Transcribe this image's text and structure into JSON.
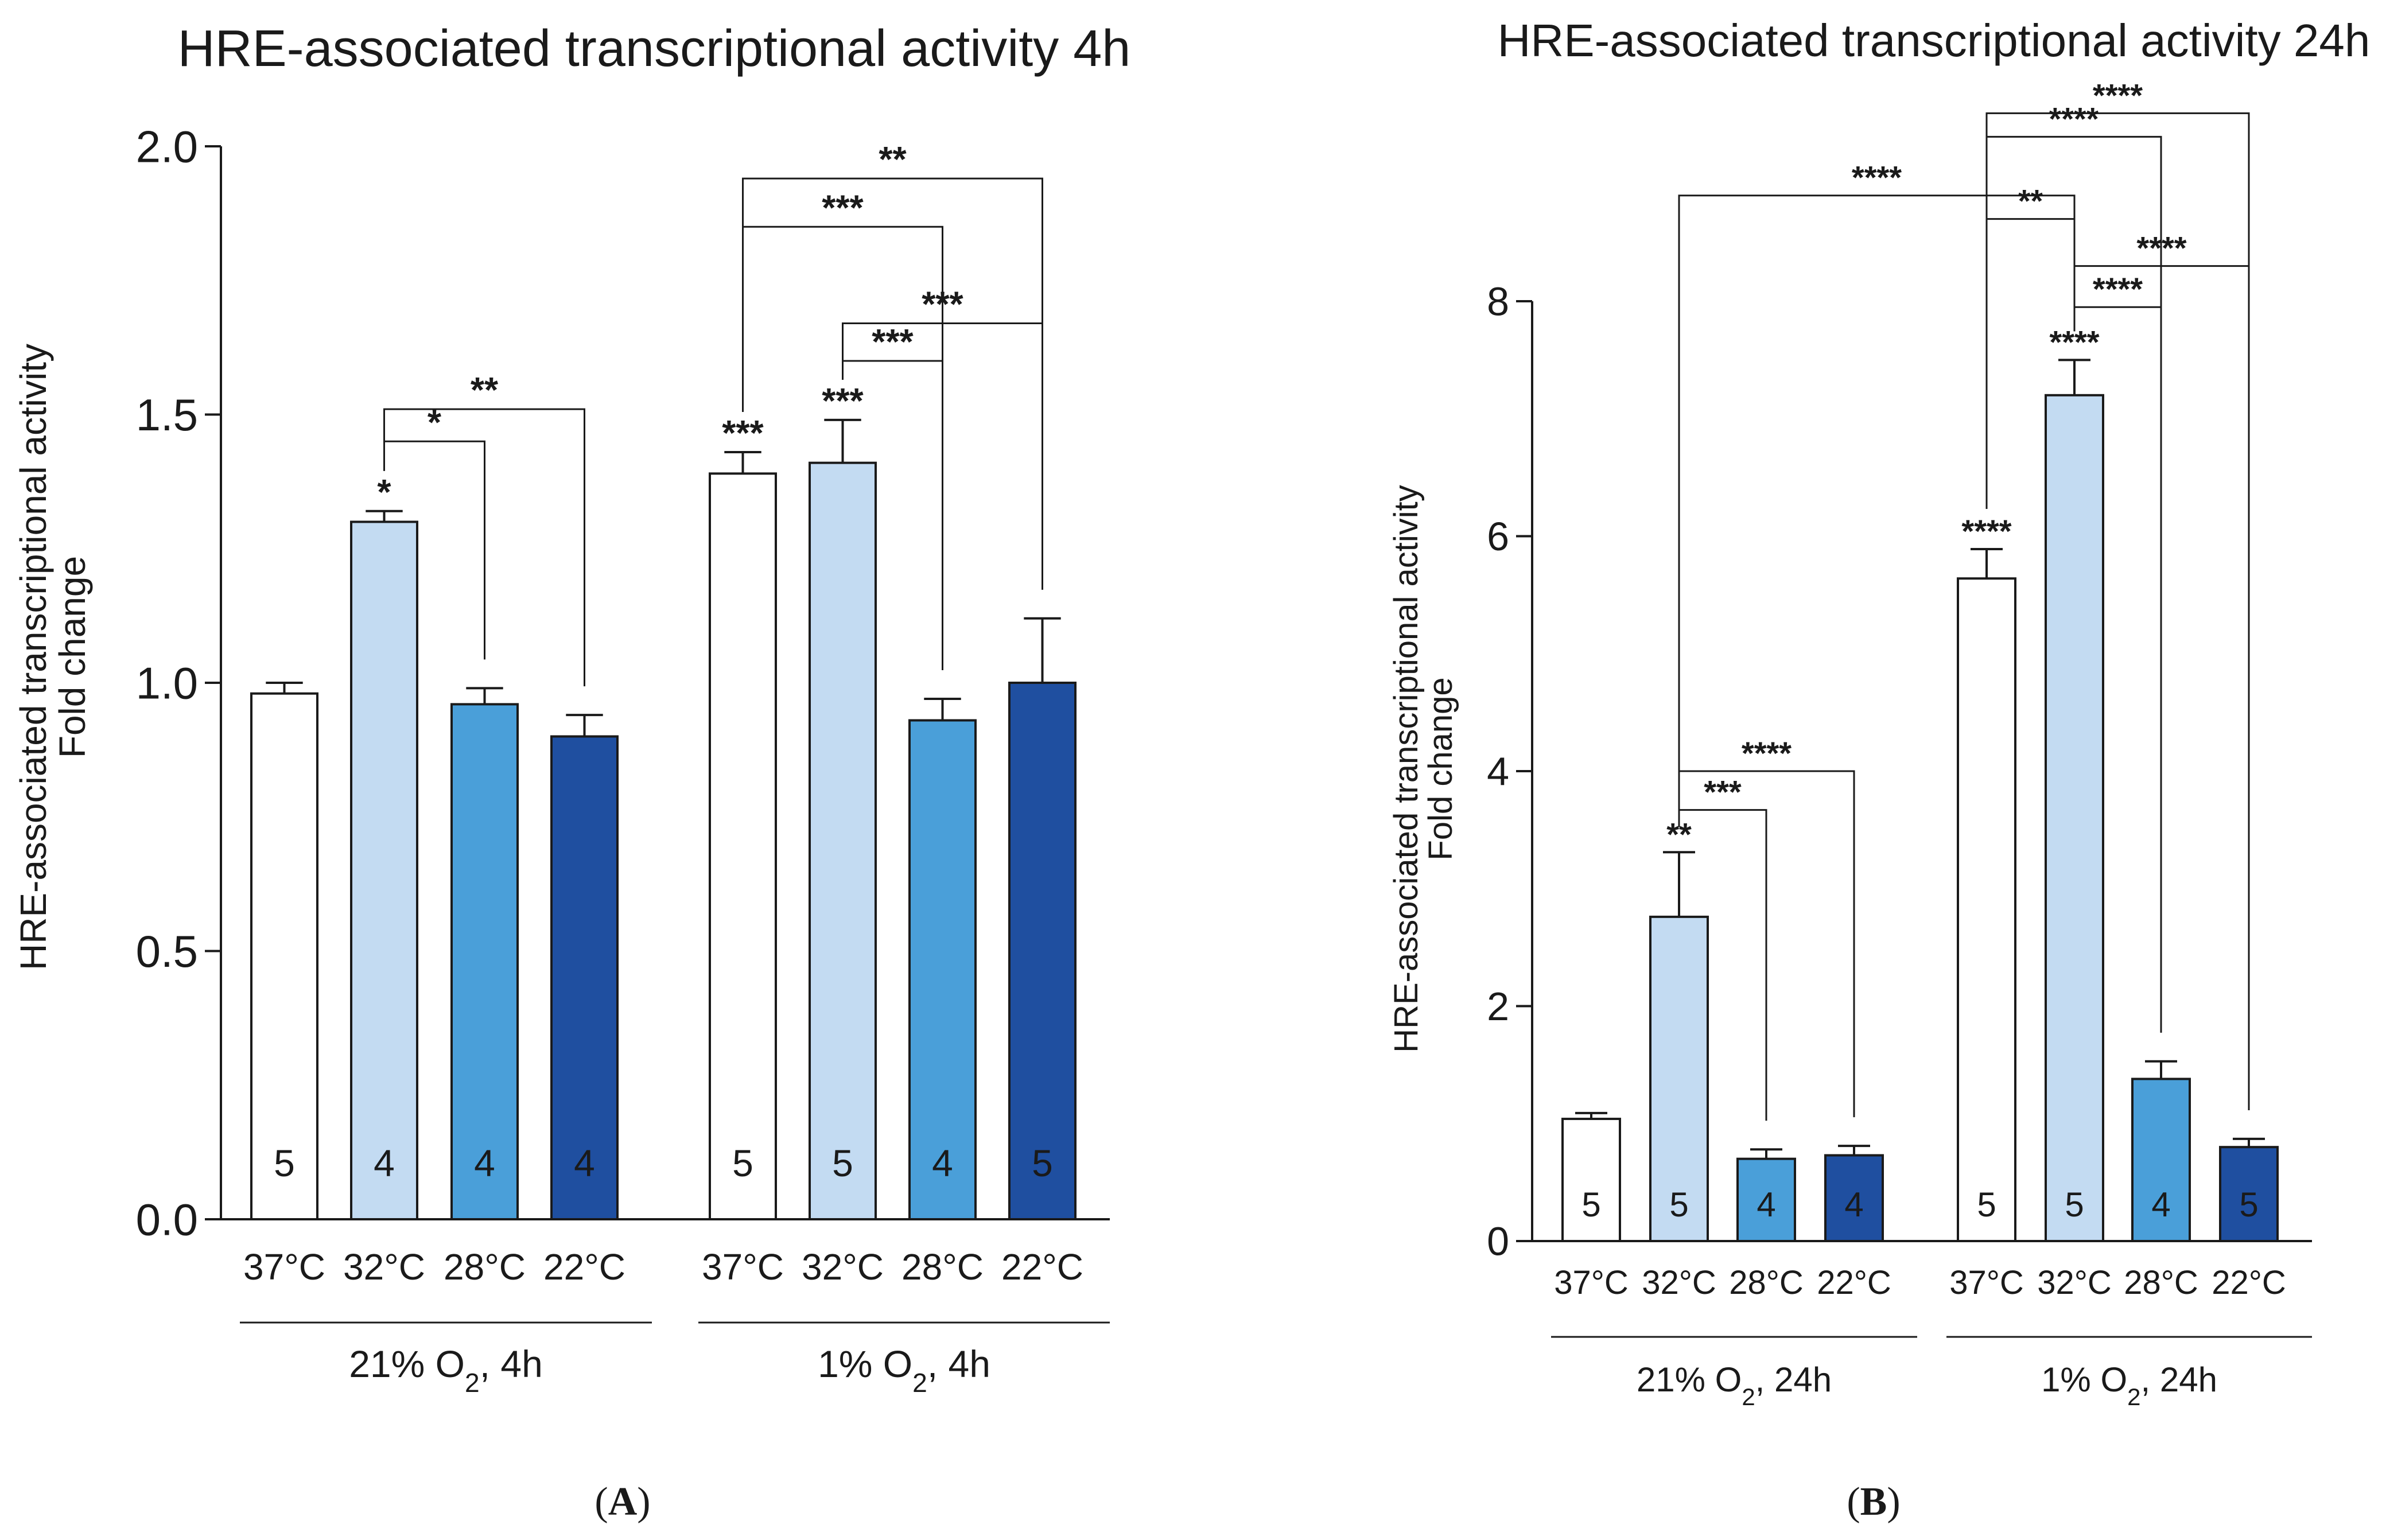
{
  "panel_labels": [
    "A",
    "B"
  ],
  "colors": {
    "37C": "#ffffff",
    "32C": "#c3dbf2",
    "28C": "#4a9fd9",
    "22C": "#1f4fa0",
    "stroke": "#1a1a1a"
  },
  "chart_data": [
    {
      "type": "bar",
      "panel": "A",
      "title": "HRE-associated transcriptional activity 4h",
      "ylabel_line1": "HRE-associated transcriptional activity",
      "ylabel_line2": "Fold change",
      "ylim": [
        0,
        2.0
      ],
      "yticks": [
        "0.0",
        "0.5",
        "1.0",
        "1.5",
        "2.0"
      ],
      "ytick_values": [
        0,
        0.5,
        1.0,
        1.5,
        2.0
      ],
      "categories": [
        "37°C",
        "32°C",
        "28°C",
        "22°C",
        "37°C",
        "32°C",
        "28°C",
        "22°C"
      ],
      "groups": [
        {
          "label_pre": "21% O",
          "label_sub": "2",
          "label_post": ", 4h",
          "bars": [
            0,
            1,
            2,
            3
          ]
        },
        {
          "label_pre": "1% O",
          "label_sub": "2",
          "label_post": ", 4h",
          "bars": [
            4,
            5,
            6,
            7
          ]
        }
      ],
      "color_keys": [
        "37C",
        "32C",
        "28C",
        "22C",
        "37C",
        "32C",
        "28C",
        "22C"
      ],
      "values": [
        0.98,
        1.3,
        0.96,
        0.9,
        1.39,
        1.41,
        0.93,
        1.0
      ],
      "errors": [
        0.02,
        0.02,
        0.03,
        0.04,
        0.04,
        0.08,
        0.04,
        0.12
      ],
      "n": [
        "5",
        "4",
        "4",
        "4",
        "5",
        "5",
        "4",
        "5"
      ],
      "bar_stars": [
        {
          "bar": 1,
          "text": "*"
        },
        {
          "bar": 4,
          "text": "***"
        },
        {
          "bar": 5,
          "text": "***"
        }
      ],
      "brackets": [
        {
          "from": 1,
          "to": 2,
          "level": 1.45,
          "text": "*"
        },
        {
          "from": 1,
          "to": 3,
          "level": 1.51,
          "text": "**"
        },
        {
          "from": 5,
          "to": 6,
          "level": 1.6,
          "text": "***"
        },
        {
          "from": 5,
          "to": 7,
          "level": 1.67,
          "text": "***"
        },
        {
          "from": 4,
          "to": 6,
          "level": 1.85,
          "text": "***"
        },
        {
          "from": 4,
          "to": 7,
          "level": 1.94,
          "text": "**"
        }
      ]
    },
    {
      "type": "bar",
      "panel": "B",
      "title": "HRE-associated transcriptional activity 24h",
      "ylabel_line1": "HRE-associated transcriptional activity",
      "ylabel_line2": "Fold change",
      "ylim": [
        0,
        8
      ],
      "yticks": [
        "0",
        "2",
        "4",
        "6",
        "8"
      ],
      "ytick_values": [
        0,
        2,
        4,
        6,
        8
      ],
      "categories": [
        "37°C",
        "32°C",
        "28°C",
        "22°C",
        "37°C",
        "32°C",
        "28°C",
        "22°C"
      ],
      "groups": [
        {
          "label_pre": "21% O",
          "label_sub": "2",
          "label_post": ", 24h",
          "bars": [
            0,
            1,
            2,
            3
          ]
        },
        {
          "label_pre": "1% O",
          "label_sub": "2",
          "label_post": ", 24h",
          "bars": [
            4,
            5,
            6,
            7
          ]
        }
      ],
      "color_keys": [
        "37C",
        "32C",
        "28C",
        "22C",
        "37C",
        "32C",
        "28C",
        "22C"
      ],
      "values": [
        1.04,
        2.76,
        0.7,
        0.73,
        5.64,
        7.2,
        1.38,
        0.8
      ],
      "errors": [
        0.05,
        0.55,
        0.08,
        0.08,
        0.25,
        0.3,
        0.15,
        0.07
      ],
      "n": [
        "5",
        "5",
        "4",
        "4",
        "5",
        "5",
        "4",
        "5"
      ],
      "bar_stars": [
        {
          "bar": 1,
          "text": "**"
        },
        {
          "bar": 4,
          "text": "****"
        },
        {
          "bar": 5,
          "text": "****"
        }
      ],
      "brackets": [
        {
          "from": 1,
          "to": 2,
          "level": 3.67,
          "text": "***"
        },
        {
          "from": 1,
          "to": 3,
          "level": 4.0,
          "text": "****"
        },
        {
          "from": 5,
          "to": 6,
          "level": 7.95,
          "text": "****"
        },
        {
          "from": 5,
          "to": 7,
          "level": 8.3,
          "text": "****"
        },
        {
          "from": 4,
          "to": 5,
          "level": 8.7,
          "text": "**"
        },
        {
          "from": 1,
          "to": 5,
          "level": 8.9,
          "text": "****"
        },
        {
          "from": 4,
          "to": 6,
          "level": 9.4,
          "text": "****"
        },
        {
          "from": 4,
          "to": 7,
          "level": 9.6,
          "text": "****"
        }
      ]
    }
  ]
}
